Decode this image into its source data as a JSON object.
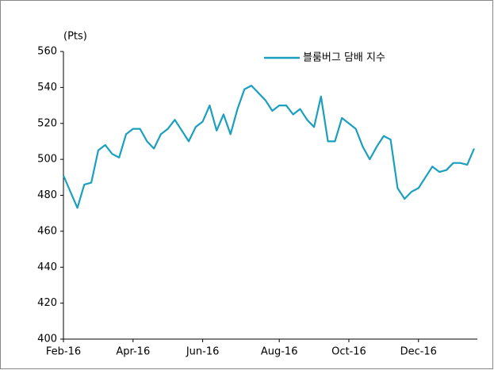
{
  "chart_data": {
    "type": "line",
    "y_label": "(Pts)",
    "categories": [
      "Feb-16",
      null,
      null,
      null,
      null,
      null,
      null,
      null,
      null,
      null,
      "Apr-16",
      null,
      null,
      null,
      null,
      null,
      null,
      null,
      null,
      null,
      "Jun-16",
      null,
      null,
      null,
      null,
      null,
      null,
      null,
      null,
      null,
      null,
      "Aug-16",
      null,
      null,
      null,
      null,
      null,
      null,
      null,
      null,
      null,
      "Oct-16",
      null,
      null,
      null,
      null,
      null,
      null,
      null,
      null,
      null,
      "Dec-16",
      null,
      null,
      null,
      null,
      null,
      null,
      null,
      null
    ],
    "series": [
      {
        "name": "블룸버그 담배 지수",
        "color": "#1a9fbf",
        "values": [
          491,
          482,
          473,
          486,
          487,
          505,
          508,
          503,
          501,
          514,
          517,
          517,
          510,
          506,
          514,
          517,
          522,
          516,
          510,
          518,
          521,
          530,
          516,
          525,
          514,
          528,
          539,
          541,
          537,
          533,
          527,
          530,
          530,
          525,
          528,
          522,
          518,
          535,
          510,
          510,
          523,
          520,
          517,
          507,
          500,
          507,
          513,
          511,
          484,
          478,
          482,
          484,
          490,
          496,
          493,
          494,
          498,
          498,
          497,
          506
        ]
      }
    ],
    "ylim": [
      400,
      560
    ],
    "yticks": [
      400,
      420,
      440,
      460,
      480,
      500,
      520,
      540,
      560
    ],
    "legend": "top-right"
  }
}
